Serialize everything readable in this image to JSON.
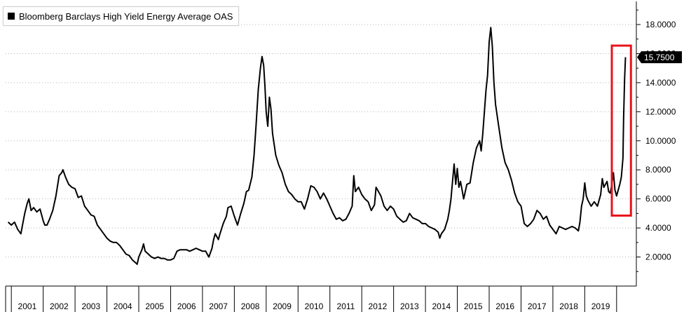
{
  "chart_data": {
    "type": "line",
    "series": [
      {
        "name": "Bloomberg Barclays High Yield Energy Average OAS",
        "color": "#000000",
        "points": [
          [
            2000.9,
            4.4
          ],
          [
            2001.0,
            4.2
          ],
          [
            2001.1,
            4.4
          ],
          [
            2001.2,
            3.9
          ],
          [
            2001.3,
            3.6
          ],
          [
            2001.35,
            4.2
          ],
          [
            2001.42,
            5.0
          ],
          [
            2001.5,
            5.7
          ],
          [
            2001.55,
            6.0
          ],
          [
            2001.62,
            5.2
          ],
          [
            2001.7,
            5.4
          ],
          [
            2001.8,
            5.1
          ],
          [
            2001.9,
            5.3
          ],
          [
            2001.95,
            4.9
          ],
          [
            2002.0,
            4.5
          ],
          [
            2002.05,
            4.2
          ],
          [
            2002.12,
            4.2
          ],
          [
            2002.2,
            4.6
          ],
          [
            2002.3,
            5.2
          ],
          [
            2002.4,
            6.2
          ],
          [
            2002.5,
            7.6
          ],
          [
            2002.58,
            7.8
          ],
          [
            2002.62,
            8.0
          ],
          [
            2002.7,
            7.5
          ],
          [
            2002.8,
            7.0
          ],
          [
            2002.9,
            6.8
          ],
          [
            2003.0,
            6.7
          ],
          [
            2003.1,
            6.1
          ],
          [
            2003.2,
            6.2
          ],
          [
            2003.3,
            5.5
          ],
          [
            2003.4,
            5.2
          ],
          [
            2003.5,
            4.9
          ],
          [
            2003.6,
            4.8
          ],
          [
            2003.7,
            4.2
          ],
          [
            2003.8,
            3.9
          ],
          [
            2003.9,
            3.6
          ],
          [
            2004.0,
            3.3
          ],
          [
            2004.1,
            3.1
          ],
          [
            2004.2,
            3.0
          ],
          [
            2004.3,
            3.0
          ],
          [
            2004.4,
            2.8
          ],
          [
            2004.5,
            2.5
          ],
          [
            2004.6,
            2.2
          ],
          [
            2004.7,
            2.1
          ],
          [
            2004.8,
            1.8
          ],
          [
            2004.9,
            1.6
          ],
          [
            2004.95,
            1.5
          ],
          [
            2005.0,
            2.0
          ],
          [
            2005.1,
            2.5
          ],
          [
            2005.15,
            2.9
          ],
          [
            2005.2,
            2.4
          ],
          [
            2005.3,
            2.2
          ],
          [
            2005.4,
            2.0
          ],
          [
            2005.5,
            1.9
          ],
          [
            2005.6,
            2.0
          ],
          [
            2005.7,
            1.9
          ],
          [
            2005.8,
            1.9
          ],
          [
            2005.9,
            1.8
          ],
          [
            2006.0,
            1.8
          ],
          [
            2006.1,
            1.9
          ],
          [
            2006.2,
            2.4
          ],
          [
            2006.3,
            2.5
          ],
          [
            2006.4,
            2.5
          ],
          [
            2006.5,
            2.5
          ],
          [
            2006.6,
            2.4
          ],
          [
            2006.7,
            2.5
          ],
          [
            2006.8,
            2.6
          ],
          [
            2006.9,
            2.5
          ],
          [
            2007.0,
            2.4
          ],
          [
            2007.1,
            2.4
          ],
          [
            2007.2,
            2.0
          ],
          [
            2007.3,
            2.6
          ],
          [
            2007.35,
            3.2
          ],
          [
            2007.4,
            3.6
          ],
          [
            2007.5,
            3.2
          ],
          [
            2007.55,
            3.6
          ],
          [
            2007.65,
            4.3
          ],
          [
            2007.75,
            4.8
          ],
          [
            2007.8,
            5.4
          ],
          [
            2007.9,
            5.5
          ],
          [
            2008.0,
            4.8
          ],
          [
            2008.1,
            4.2
          ],
          [
            2008.2,
            5.0
          ],
          [
            2008.3,
            5.7
          ],
          [
            2008.38,
            6.5
          ],
          [
            2008.45,
            6.6
          ],
          [
            2008.55,
            7.5
          ],
          [
            2008.62,
            9.0
          ],
          [
            2008.68,
            11.0
          ],
          [
            2008.75,
            13.5
          ],
          [
            2008.82,
            15.0
          ],
          [
            2008.87,
            15.8
          ],
          [
            2008.92,
            15.2
          ],
          [
            2008.96,
            13.8
          ],
          [
            2009.0,
            12.0
          ],
          [
            2009.05,
            11.0
          ],
          [
            2009.1,
            13.0
          ],
          [
            2009.15,
            12.2
          ],
          [
            2009.2,
            10.5
          ],
          [
            2009.3,
            9.0
          ],
          [
            2009.4,
            8.3
          ],
          [
            2009.5,
            7.8
          ],
          [
            2009.6,
            7.0
          ],
          [
            2009.7,
            6.5
          ],
          [
            2009.8,
            6.3
          ],
          [
            2009.9,
            6.0
          ],
          [
            2010.0,
            5.8
          ],
          [
            2010.1,
            5.8
          ],
          [
            2010.2,
            5.3
          ],
          [
            2010.3,
            6.0
          ],
          [
            2010.4,
            6.9
          ],
          [
            2010.5,
            6.8
          ],
          [
            2010.6,
            6.5
          ],
          [
            2010.7,
            6.0
          ],
          [
            2010.8,
            6.4
          ],
          [
            2010.9,
            6.0
          ],
          [
            2011.0,
            5.5
          ],
          [
            2011.1,
            5.0
          ],
          [
            2011.2,
            4.6
          ],
          [
            2011.3,
            4.7
          ],
          [
            2011.4,
            4.5
          ],
          [
            2011.5,
            4.6
          ],
          [
            2011.6,
            5.0
          ],
          [
            2011.7,
            5.5
          ],
          [
            2011.75,
            7.6
          ],
          [
            2011.8,
            6.5
          ],
          [
            2011.9,
            6.8
          ],
          [
            2012.0,
            6.3
          ],
          [
            2012.1,
            6.0
          ],
          [
            2012.2,
            5.8
          ],
          [
            2012.3,
            5.2
          ],
          [
            2012.4,
            5.6
          ],
          [
            2012.45,
            6.8
          ],
          [
            2012.5,
            6.6
          ],
          [
            2012.6,
            6.2
          ],
          [
            2012.7,
            5.5
          ],
          [
            2012.8,
            5.2
          ],
          [
            2012.9,
            5.5
          ],
          [
            2013.0,
            5.3
          ],
          [
            2013.1,
            4.8
          ],
          [
            2013.2,
            4.6
          ],
          [
            2013.3,
            4.4
          ],
          [
            2013.4,
            4.5
          ],
          [
            2013.5,
            5.0
          ],
          [
            2013.6,
            4.7
          ],
          [
            2013.7,
            4.6
          ],
          [
            2013.8,
            4.5
          ],
          [
            2013.9,
            4.3
          ],
          [
            2014.0,
            4.3
          ],
          [
            2014.1,
            4.1
          ],
          [
            2014.2,
            4.0
          ],
          [
            2014.3,
            3.9
          ],
          [
            2014.4,
            3.7
          ],
          [
            2014.45,
            3.3
          ],
          [
            2014.5,
            3.6
          ],
          [
            2014.6,
            3.9
          ],
          [
            2014.7,
            4.6
          ],
          [
            2014.75,
            5.2
          ],
          [
            2014.8,
            6.0
          ],
          [
            2014.85,
            7.2
          ],
          [
            2014.9,
            8.4
          ],
          [
            2014.95,
            7.0
          ],
          [
            2015.0,
            8.1
          ],
          [
            2015.05,
            6.8
          ],
          [
            2015.1,
            7.2
          ],
          [
            2015.15,
            6.6
          ],
          [
            2015.2,
            6.0
          ],
          [
            2015.3,
            7.0
          ],
          [
            2015.4,
            7.1
          ],
          [
            2015.5,
            8.5
          ],
          [
            2015.6,
            9.5
          ],
          [
            2015.7,
            10.0
          ],
          [
            2015.75,
            9.3
          ],
          [
            2015.8,
            10.5
          ],
          [
            2015.85,
            12.0
          ],
          [
            2015.9,
            13.5
          ],
          [
            2015.95,
            14.5
          ],
          [
            2016.0,
            16.8
          ],
          [
            2016.05,
            17.8
          ],
          [
            2016.1,
            16.5
          ],
          [
            2016.15,
            14.0
          ],
          [
            2016.2,
            12.5
          ],
          [
            2016.3,
            11.0
          ],
          [
            2016.4,
            9.5
          ],
          [
            2016.5,
            8.5
          ],
          [
            2016.6,
            8.0
          ],
          [
            2016.7,
            7.3
          ],
          [
            2016.8,
            6.4
          ],
          [
            2016.9,
            5.8
          ],
          [
            2017.0,
            5.5
          ],
          [
            2017.1,
            4.3
          ],
          [
            2017.2,
            4.1
          ],
          [
            2017.3,
            4.3
          ],
          [
            2017.4,
            4.6
          ],
          [
            2017.5,
            5.2
          ],
          [
            2017.6,
            5.0
          ],
          [
            2017.7,
            4.6
          ],
          [
            2017.8,
            4.8
          ],
          [
            2017.9,
            4.2
          ],
          [
            2018.0,
            3.9
          ],
          [
            2018.1,
            3.6
          ],
          [
            2018.2,
            4.1
          ],
          [
            2018.3,
            4.0
          ],
          [
            2018.4,
            3.9
          ],
          [
            2018.5,
            4.0
          ],
          [
            2018.6,
            4.1
          ],
          [
            2018.7,
            4.0
          ],
          [
            2018.8,
            3.8
          ],
          [
            2018.85,
            4.4
          ],
          [
            2018.9,
            5.5
          ],
          [
            2018.95,
            6.0
          ],
          [
            2019.0,
            7.1
          ],
          [
            2019.05,
            6.2
          ],
          [
            2019.1,
            5.9
          ],
          [
            2019.2,
            5.5
          ],
          [
            2019.3,
            5.8
          ],
          [
            2019.4,
            5.5
          ],
          [
            2019.5,
            6.3
          ],
          [
            2019.55,
            7.4
          ],
          [
            2019.6,
            6.8
          ],
          [
            2019.7,
            7.2
          ],
          [
            2019.75,
            6.5
          ],
          [
            2019.8,
            6.4
          ],
          [
            2019.85,
            7.0
          ],
          [
            2019.9,
            7.8
          ],
          [
            2019.95,
            6.6
          ],
          [
            2020.0,
            6.2
          ],
          [
            2020.05,
            6.6
          ],
          [
            2020.1,
            7.0
          ],
          [
            2020.15,
            7.5
          ],
          [
            2020.2,
            8.8
          ],
          [
            2020.22,
            11.5
          ],
          [
            2020.25,
            14.2
          ],
          [
            2020.28,
            15.75
          ]
        ]
      }
    ],
    "last_value": "15.7500",
    "x_tick_labels": [
      "2001",
      "2002",
      "2003",
      "2004",
      "2005",
      "2006",
      "2007",
      "2008",
      "2009",
      "2010",
      "2011",
      "2012",
      "2013",
      "2014",
      "2015",
      "2016",
      "2017",
      "2018",
      "2019"
    ],
    "y_tick_labels": [
      "2.0000",
      "4.0000",
      "6.0000",
      "8.0000",
      "10.0000",
      "12.0000",
      "14.0000",
      "16.0000",
      "18.0000"
    ],
    "xlim": [
      2000.82,
      2020.62
    ],
    "ylim": [
      0,
      19.4
    ],
    "grid": {
      "horizontal": true,
      "vertical": false,
      "style": "dotted"
    },
    "y_axis_side": "right",
    "legend_position": "top-left",
    "highlight": {
      "x": [
        2019.85,
        2020.45
      ],
      "y": [
        4.85,
        16.55
      ],
      "color": "#e8141c"
    }
  }
}
